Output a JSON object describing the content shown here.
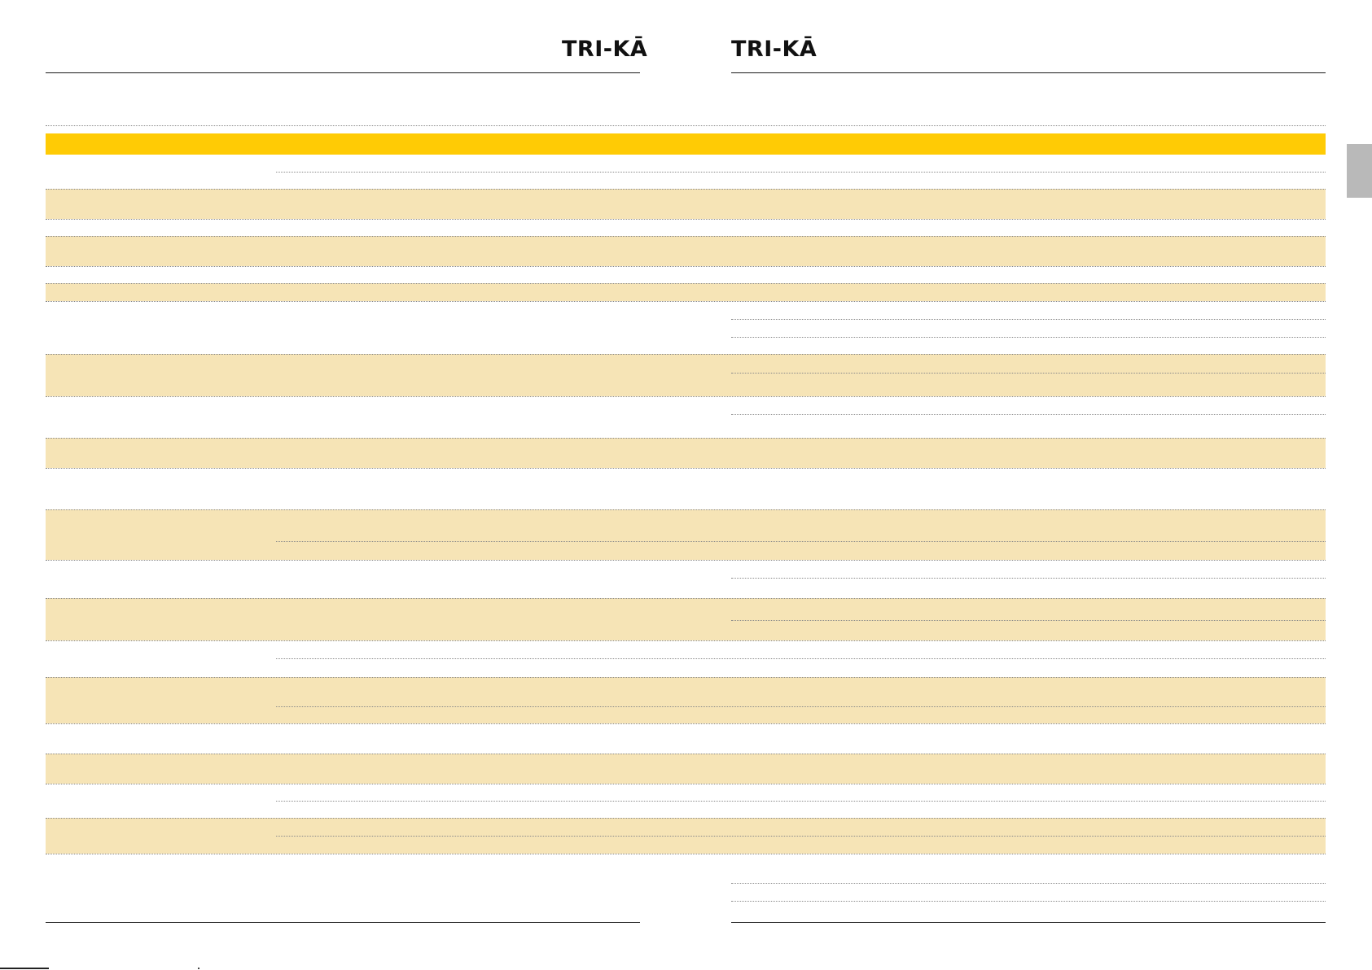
{
  "brand": {
    "logo_left": "TRI-KĀ",
    "logo_right": "TRI-KĀ"
  },
  "colors": {
    "header_band": "#ffcb05",
    "row_band": "#f6e4b6",
    "rule": "#1a1a1a",
    "dotted_rule": "#8a8a8a",
    "side_tab": "#b9b9b9"
  },
  "table": {
    "header_row": "",
    "rows": []
  }
}
